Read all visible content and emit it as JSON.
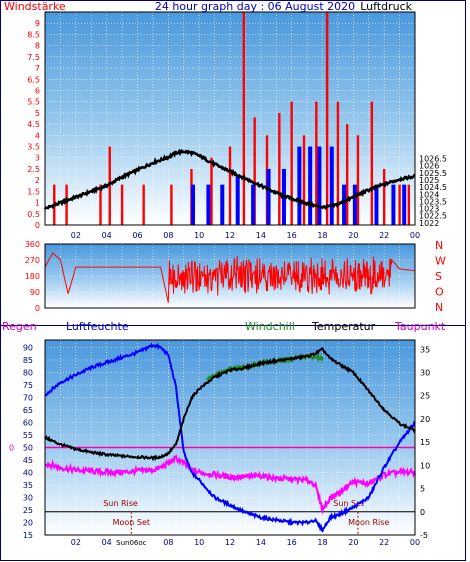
{
  "header": {
    "title": "24 hour graph day : 06 August 2020",
    "left_label": "Windstärke",
    "right_label": "Luftdruck"
  },
  "bottom_header": {
    "regen": "Regen",
    "luftfeuchte": "Luftfeuchte",
    "windchill": "Windchill",
    "temperatur": "Temperatur",
    "taupunkt": "Taupunkt"
  },
  "colors": {
    "border": "#000080",
    "grid": "#ffffff",
    "sky_top": "#6fb0e6",
    "sky_bottom": "#ffffff",
    "wind": "#ff0000",
    "gust": "#0000ff",
    "pressure": "#000000",
    "direction": "#ff0000",
    "humidity": "#0000ff",
    "temperature": "#000000",
    "windchill": "#228b22",
    "dewpoint": "#ff00ff",
    "zero_line": "#ff00aa",
    "astro": "#a00000"
  },
  "chart_data": [
    {
      "id": "wind_pressure",
      "type": "line",
      "x_ticks": [
        "02",
        "04",
        "06",
        "08",
        "10",
        "12",
        "14",
        "16",
        "18",
        "20",
        "22",
        "00"
      ],
      "y_left": {
        "label": "Windstärke",
        "min": 0,
        "max": 9.5,
        "ticks": [
          "0",
          "0.5",
          "1",
          "1.5",
          "2",
          "2.5",
          "3",
          "3.5",
          "4",
          "4.5",
          "5",
          "5.5",
          "6",
          "6.5",
          "7",
          "7.5",
          "8",
          "8.5",
          "9"
        ]
      },
      "y_right": {
        "label": "Luftdruck",
        "min": 1021.85,
        "max": 1036.75,
        "ticks": [
          "1022",
          "1022.5",
          "1023",
          "1023.5",
          "1024",
          "1024.5",
          "1025",
          "1025.5",
          "1026",
          "1026.5"
        ]
      },
      "series": [
        {
          "key": "pressure",
          "axis": "right",
          "x": [
            0,
            1,
            2,
            3,
            4,
            5,
            6,
            7,
            8,
            8.5,
            9,
            9.5,
            10,
            11,
            12,
            13,
            14,
            15,
            16,
            17,
            17.5,
            18,
            18.5,
            19,
            20,
            21,
            22,
            23,
            24
          ],
          "values": [
            1023.0,
            1023.4,
            1023.8,
            1024.2,
            1024.6,
            1025.2,
            1025.7,
            1026.2,
            1026.6,
            1026.9,
            1027.0,
            1026.9,
            1026.7,
            1026.1,
            1025.6,
            1025.1,
            1024.6,
            1024.1,
            1023.7,
            1023.35,
            1023.2,
            1023.1,
            1023.15,
            1023.3,
            1023.8,
            1024.3,
            1024.7,
            1025.05,
            1025.25
          ]
        },
        {
          "key": "wind",
          "axis": "left",
          "x": [
            0.6,
            1.4,
            3.6,
            4.2,
            5.0,
            6.4,
            8.2,
            9.5,
            10.8,
            12.0,
            12.9,
            13.6,
            14.4,
            15.2,
            16.0,
            16.8,
            17.6,
            18.3,
            19.0,
            19.6,
            20.3,
            21.2,
            22.0,
            23.0,
            23.6
          ],
          "values": [
            1.8,
            1.8,
            1.8,
            3.5,
            1.8,
            1.8,
            1.8,
            2.5,
            3.0,
            3.5,
            9.5,
            4.8,
            4.0,
            5.0,
            5.5,
            4.0,
            5.5,
            9.5,
            5.5,
            4.5,
            4.0,
            5.5,
            2.5,
            1.8,
            1.8
          ]
        },
        {
          "key": "gust",
          "axis": "left",
          "x": [
            9.6,
            10.6,
            11.5,
            12.5,
            13.5,
            14.5,
            15.5,
            16.5,
            17.2,
            17.8,
            18.6,
            19.4,
            20.1,
            21.5,
            22.6,
            23.3
          ],
          "values": [
            1.8,
            1.8,
            1.8,
            2.2,
            1.8,
            2.5,
            2.5,
            3.5,
            3.5,
            3.5,
            3.5,
            1.8,
            1.8,
            1.8,
            1.8,
            1.8
          ]
        }
      ]
    },
    {
      "id": "wind_direction",
      "type": "line",
      "x_ticks": [
        "02",
        "04",
        "06",
        "08",
        "10",
        "12",
        "14",
        "16",
        "18",
        "20",
        "22",
        "00"
      ],
      "y_left": {
        "min": 0,
        "max": 360,
        "ticks": [
          "360",
          "270",
          "180",
          "90",
          "0"
        ]
      },
      "y_right_labels": [
        "N",
        "W",
        "S",
        "O",
        "N"
      ],
      "series": [
        {
          "key": "direction",
          "x": [
            0,
            0.5,
            1.0,
            1.5,
            2.0,
            3.0,
            4.0,
            5.0,
            6.0,
            7.0,
            7.5,
            8.0,
            8.5,
            9.0,
            10.0,
            11.0,
            12.0,
            13.0,
            14.0,
            15.0,
            16.0,
            17.0,
            18.0,
            19.0,
            20.0,
            21.0,
            22.0,
            23.0,
            24.0
          ],
          "values": [
            230,
            310,
            270,
            80,
            230,
            230,
            230,
            230,
            230,
            230,
            230,
            30,
            100,
            340,
            200,
            250,
            150,
            290,
            120,
            250,
            190,
            300,
            60,
            230,
            290,
            230,
            320,
            220,
            210
          ]
        }
      ]
    },
    {
      "id": "temperature_humidity",
      "type": "line",
      "x_ticks": [
        "02",
        "04",
        "06",
        "08",
        "10",
        "12",
        "14",
        "16",
        "18",
        "20",
        "22",
        "00"
      ],
      "y_left": {
        "label": "Luftfeuchte",
        "min": 15,
        "max": 93,
        "ticks": [
          "90",
          "85",
          "80",
          "75",
          "70",
          "65",
          "60",
          "55",
          "50",
          "45",
          "40",
          "35",
          "30",
          "25",
          "20",
          "15"
        ]
      },
      "y_right": {
        "label": "Temperatur",
        "min": -5,
        "max": 37,
        "ticks": [
          "35",
          "30",
          "25",
          "20",
          "15",
          "10",
          "5",
          "0",
          "-5"
        ]
      },
      "rain_marker": "0",
      "series": [
        {
          "key": "humidity",
          "axis": "left",
          "x": [
            0,
            1,
            2,
            3,
            4,
            5,
            6,
            7,
            7.5,
            8,
            8.5,
            9,
            9.5,
            10,
            11,
            12,
            13,
            14,
            15,
            16,
            17,
            17.5,
            18,
            18.5,
            19,
            20,
            21,
            22,
            23,
            24
          ],
          "values": [
            71,
            76,
            79,
            82,
            84,
            86,
            88,
            91,
            90,
            87,
            74,
            48,
            40,
            37,
            30,
            27,
            24,
            22,
            21,
            20,
            20,
            21,
            17,
            22,
            23,
            26,
            30,
            42,
            52,
            60
          ]
        },
        {
          "key": "temperature",
          "axis": "right",
          "x": [
            0,
            1,
            2,
            3,
            4,
            5,
            6,
            7,
            7.5,
            8,
            8.5,
            9,
            9.5,
            10,
            11,
            12,
            13,
            14,
            15,
            16,
            17,
            17.5,
            18,
            18.5,
            19,
            20,
            21,
            22,
            23,
            24
          ],
          "values": [
            16.0,
            14.5,
            13.5,
            12.8,
            12.3,
            12.0,
            11.8,
            11.6,
            11.8,
            12.6,
            14.5,
            20.0,
            24.5,
            26.5,
            29.0,
            30.5,
            31.0,
            32.0,
            32.5,
            33.0,
            33.5,
            34.0,
            35.0,
            33.0,
            32.0,
            30.0,
            26.0,
            22.0,
            19.0,
            17.5
          ]
        },
        {
          "key": "windchill",
          "axis": "right",
          "x": [
            10.5,
            11,
            12,
            13,
            14,
            15,
            16,
            17,
            17.5,
            18
          ],
          "values": [
            28.5,
            29.3,
            30.8,
            31.2,
            32.0,
            32.4,
            33.0,
            33.5,
            33.2,
            33.0
          ]
        },
        {
          "key": "dewpoint",
          "axis": "right",
          "x": [
            0,
            1,
            2,
            3,
            4,
            5,
            6,
            7,
            7.5,
            8,
            8.5,
            9,
            9.5,
            10,
            11,
            12,
            13,
            14,
            15,
            16,
            17,
            17.5,
            18,
            18.5,
            19,
            20,
            21,
            22,
            23,
            24
          ],
          "values": [
            10.5,
            9.5,
            9.0,
            8.8,
            8.5,
            8.5,
            8.8,
            9.0,
            9.5,
            10.5,
            11.5,
            10.5,
            9.0,
            8.5,
            8.0,
            7.5,
            7.5,
            7.8,
            7.2,
            7.0,
            6.8,
            6.0,
            0.5,
            3.0,
            4.0,
            6.5,
            6.0,
            8.0,
            8.5,
            8.5
          ]
        }
      ]
    }
  ],
  "astro": {
    "sun_rise": {
      "label": "Sun Rise",
      "hour": 4.9
    },
    "sun_set": {
      "label": "Sun Set",
      "hour": 19.7
    },
    "moon_set": {
      "label": "Moon Set",
      "hour": 5.6
    },
    "moon_rise": {
      "label": "Moon Rise",
      "hour": 21.0
    },
    "now_label": "Sun06oc"
  }
}
